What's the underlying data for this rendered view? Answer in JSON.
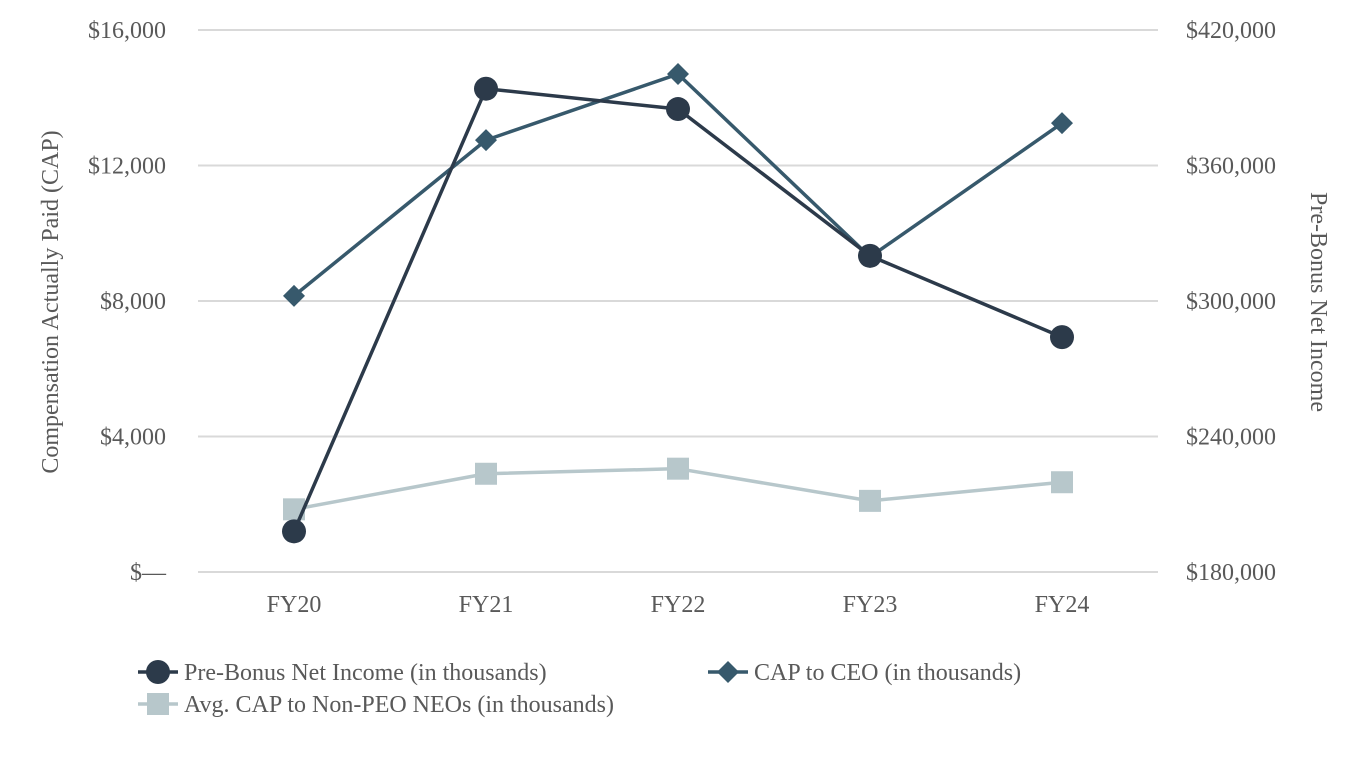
{
  "chart_data": {
    "type": "line",
    "categories": [
      "FY20",
      "FY21",
      "FY22",
      "FY23",
      "FY24"
    ],
    "left_axis": {
      "label": "Compensation Actually Paid (CAP)",
      "ylim": [
        0,
        16000
      ],
      "ticks": [
        0,
        4000,
        8000,
        12000,
        16000
      ],
      "tick_labels": [
        "$—",
        "$4,000",
        "$8,000",
        "$12,000",
        "$16,000"
      ]
    },
    "right_axis": {
      "label": "Pre-Bonus Net Income",
      "ylim": [
        180000,
        420000
      ],
      "ticks": [
        180000,
        240000,
        300000,
        360000,
        420000
      ],
      "tick_labels": [
        "$180,000",
        "$240,000",
        "$300,000",
        "$360,000",
        "$420,000"
      ]
    },
    "series": [
      {
        "name": "Pre-Bonus Net Income (in thousands)",
        "axis": "right",
        "marker": "circle",
        "color": "#2c3a4a",
        "values": [
          198000,
          394000,
          385000,
          320000,
          284000
        ]
      },
      {
        "name": "CAP to CEO (in thousands)",
        "axis": "left",
        "marker": "diamond",
        "color": "#37596c",
        "values": [
          8150,
          12750,
          14700,
          9300,
          13250
        ]
      },
      {
        "name": "Avg. CAP to Non-PEO NEOs (in thousands)",
        "axis": "left",
        "marker": "square",
        "color": "#b7c7cb",
        "values": [
          1850,
          2900,
          3050,
          2100,
          2650
        ]
      }
    ],
    "grid": true,
    "legend_position": "bottom"
  }
}
